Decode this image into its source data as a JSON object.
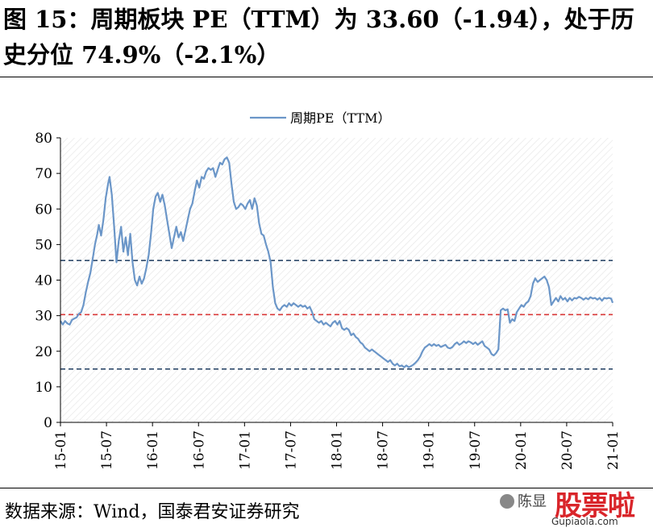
{
  "header": {
    "title": "图 15：周期板块 PE（TTM）为 33.60（-1.94），处于历史分位 74.9%（-2.1%）"
  },
  "footer": {
    "source": "数据来源：Wind，国泰君安证券研究"
  },
  "watermark": {
    "account": "陈显",
    "brand": "股票啦",
    "url": "Gupiaola.com"
  },
  "colors": {
    "series": "#6b96c8",
    "upper_line": "#2f4a6b",
    "mid_line": "#d93a3a",
    "lower_line": "#2f4a6b",
    "hatch": "#e3e3e3"
  },
  "chart_data": {
    "type": "line",
    "title": "",
    "legend": [
      "周期PE（TTM）"
    ],
    "legend_position": "top-center",
    "xlabel": "",
    "ylabel": "",
    "ylim": [
      0,
      80
    ],
    "yticks": [
      0,
      10,
      20,
      30,
      40,
      50,
      60,
      70,
      80
    ],
    "xlim": [
      0,
      72
    ],
    "x_tick_positions": [
      0,
      6,
      12,
      18,
      24,
      30,
      36,
      42,
      48,
      54,
      60,
      66,
      72
    ],
    "x_tick_labels": [
      "15-01",
      "15-07",
      "16-01",
      "16-07",
      "17-01",
      "17-07",
      "18-01",
      "18-07",
      "19-01",
      "19-07",
      "20-01",
      "20-07",
      "21-01"
    ],
    "reference_lines": [
      {
        "name": "upper",
        "value": 45.5,
        "style": "dashed"
      },
      {
        "name": "mid",
        "value": 30.3,
        "style": "dashed"
      },
      {
        "name": "lower",
        "value": 15.0,
        "style": "dashed"
      }
    ],
    "series": [
      {
        "name": "周期PE（TTM）",
        "points": [
          [
            0,
            28.5
          ],
          [
            0.3,
            27.5
          ],
          [
            0.6,
            28.5
          ],
          [
            0.9,
            27.8
          ],
          [
            1.2,
            27.5
          ],
          [
            1.5,
            28.8
          ],
          [
            1.8,
            29.2
          ],
          [
            2.1,
            29.5
          ],
          [
            2.4,
            30.5
          ],
          [
            2.7,
            31.0
          ],
          [
            3.0,
            33.0
          ],
          [
            3.3,
            36.5
          ],
          [
            3.6,
            39.5
          ],
          [
            3.9,
            42.0
          ],
          [
            4.2,
            46.0
          ],
          [
            4.5,
            50.0
          ],
          [
            4.8,
            53.0
          ],
          [
            5.0,
            55.5
          ],
          [
            5.3,
            52.5
          ],
          [
            5.6,
            57.0
          ],
          [
            5.9,
            63.0
          ],
          [
            6.2,
            67.0
          ],
          [
            6.4,
            69.0
          ],
          [
            6.7,
            64.0
          ],
          [
            7.0,
            55.0
          ],
          [
            7.3,
            45.0
          ],
          [
            7.6,
            51.0
          ],
          [
            7.9,
            55.0
          ],
          [
            8.2,
            48.0
          ],
          [
            8.5,
            52.0
          ],
          [
            8.8,
            47.0
          ],
          [
            9.1,
            53.0
          ],
          [
            9.4,
            45.0
          ],
          [
            9.7,
            40.0
          ],
          [
            10.0,
            38.5
          ],
          [
            10.3,
            41.0
          ],
          [
            10.6,
            39.0
          ],
          [
            10.9,
            40.5
          ],
          [
            11.2,
            43.5
          ],
          [
            11.5,
            47.0
          ],
          [
            11.8,
            53.0
          ],
          [
            12.1,
            60.0
          ],
          [
            12.4,
            63.5
          ],
          [
            12.7,
            64.5
          ],
          [
            13.0,
            62.0
          ],
          [
            13.3,
            64.0
          ],
          [
            13.6,
            61.0
          ],
          [
            13.9,
            57.0
          ],
          [
            14.2,
            53.0
          ],
          [
            14.5,
            49.0
          ],
          [
            14.8,
            52.0
          ],
          [
            15.1,
            55.0
          ],
          [
            15.4,
            52.0
          ],
          [
            15.7,
            53.5
          ],
          [
            16.0,
            51.0
          ],
          [
            16.3,
            54.0
          ],
          [
            16.6,
            57.0
          ],
          [
            16.9,
            60.0
          ],
          [
            17.2,
            61.5
          ],
          [
            17.5,
            65.0
          ],
          [
            17.8,
            68.0
          ],
          [
            18.1,
            66.0
          ],
          [
            18.4,
            69.0
          ],
          [
            18.7,
            68.5
          ],
          [
            19.0,
            70.5
          ],
          [
            19.3,
            71.5
          ],
          [
            19.6,
            71.0
          ],
          [
            19.9,
            71.5
          ],
          [
            20.2,
            69.0
          ],
          [
            20.5,
            71.0
          ],
          [
            20.8,
            73.0
          ],
          [
            21.1,
            72.5
          ],
          [
            21.4,
            74.0
          ],
          [
            21.7,
            74.5
          ],
          [
            22.0,
            73.0
          ],
          [
            22.3,
            67.0
          ],
          [
            22.6,
            62.0
          ],
          [
            22.9,
            60.0
          ],
          [
            23.2,
            60.5
          ],
          [
            23.5,
            61.5
          ],
          [
            23.8,
            61.0
          ],
          [
            24.1,
            60.0
          ],
          [
            24.4,
            61.5
          ],
          [
            24.7,
            62.5
          ],
          [
            25.0,
            60.0
          ],
          [
            25.3,
            63.0
          ],
          [
            25.6,
            61.0
          ],
          [
            25.9,
            56.0
          ],
          [
            26.2,
            53.0
          ],
          [
            26.5,
            52.5
          ],
          [
            26.8,
            50.0
          ],
          [
            27.1,
            48.0
          ],
          [
            27.4,
            45.0
          ],
          [
            27.7,
            38.0
          ],
          [
            28.0,
            33.5
          ],
          [
            28.3,
            32.0
          ],
          [
            28.6,
            31.5
          ],
          [
            28.9,
            32.5
          ],
          [
            29.2,
            33.0
          ],
          [
            29.5,
            32.5
          ],
          [
            29.8,
            33.5
          ],
          [
            30.1,
            32.8
          ],
          [
            30.4,
            33.5
          ],
          [
            30.7,
            33.0
          ],
          [
            31.0,
            32.5
          ],
          [
            31.3,
            33.0
          ],
          [
            31.6,
            32.5
          ],
          [
            31.9,
            32.8
          ],
          [
            32.2,
            32.0
          ],
          [
            32.5,
            32.5
          ],
          [
            32.8,
            31.0
          ],
          [
            33.1,
            29.0
          ],
          [
            33.4,
            28.5
          ],
          [
            33.7,
            28.0
          ],
          [
            34.0,
            28.5
          ],
          [
            34.3,
            27.5
          ],
          [
            34.6,
            28.0
          ],
          [
            34.9,
            27.5
          ],
          [
            35.2,
            27.0
          ],
          [
            35.5,
            28.0
          ],
          [
            35.8,
            28.5
          ],
          [
            36.1,
            27.5
          ],
          [
            36.4,
            28.5
          ],
          [
            36.7,
            26.5
          ],
          [
            37.0,
            26.0
          ],
          [
            37.3,
            26.5
          ],
          [
            37.6,
            26.0
          ],
          [
            37.9,
            24.5
          ],
          [
            38.2,
            25.0
          ],
          [
            38.5,
            24.0
          ],
          [
            38.8,
            23.5
          ],
          [
            39.1,
            22.5
          ],
          [
            39.4,
            22.0
          ],
          [
            39.7,
            21.0
          ],
          [
            40.0,
            20.5
          ],
          [
            40.3,
            20.0
          ],
          [
            40.6,
            20.5
          ],
          [
            40.9,
            20.0
          ],
          [
            41.2,
            19.5
          ],
          [
            41.5,
            19.0
          ],
          [
            41.8,
            18.5
          ],
          [
            42.1,
            18.0
          ],
          [
            42.4,
            17.5
          ],
          [
            42.7,
            17.0
          ],
          [
            43.0,
            17.5
          ],
          [
            43.3,
            16.5
          ],
          [
            43.6,
            16.0
          ],
          [
            43.9,
            16.5
          ],
          [
            44.2,
            15.8
          ],
          [
            44.5,
            16.0
          ],
          [
            44.8,
            15.5
          ],
          [
            45.1,
            16.0
          ],
          [
            45.4,
            15.5
          ],
          [
            45.7,
            15.8
          ],
          [
            46.0,
            16.2
          ],
          [
            46.3,
            16.8
          ],
          [
            46.6,
            17.5
          ],
          [
            46.9,
            18.5
          ],
          [
            47.2,
            20.0
          ],
          [
            47.5,
            21.0
          ],
          [
            47.8,
            21.5
          ],
          [
            48.1,
            22.0
          ],
          [
            48.4,
            21.5
          ],
          [
            48.7,
            22.0
          ],
          [
            49.0,
            21.5
          ],
          [
            49.3,
            21.8
          ],
          [
            49.6,
            21.2
          ],
          [
            49.9,
            21.5
          ],
          [
            50.2,
            21.8
          ],
          [
            50.5,
            21.0
          ],
          [
            50.8,
            20.8
          ],
          [
            51.1,
            21.2
          ],
          [
            51.4,
            22.0
          ],
          [
            51.7,
            22.5
          ],
          [
            52.0,
            21.8
          ],
          [
            52.3,
            22.2
          ],
          [
            52.6,
            22.8
          ],
          [
            52.9,
            22.3
          ],
          [
            53.2,
            22.8
          ],
          [
            53.5,
            22.5
          ],
          [
            53.8,
            22.0
          ],
          [
            54.1,
            22.5
          ],
          [
            54.4,
            21.8
          ],
          [
            54.7,
            22.3
          ],
          [
            55.0,
            22.8
          ],
          [
            55.3,
            21.5
          ],
          [
            55.6,
            21.0
          ],
          [
            55.9,
            20.5
          ],
          [
            56.2,
            19.2
          ],
          [
            56.5,
            18.8
          ],
          [
            56.8,
            19.5
          ],
          [
            57.1,
            20.5
          ],
          [
            57.4,
            31.5
          ],
          [
            57.7,
            32.0
          ],
          [
            58.0,
            31.5
          ],
          [
            58.3,
            31.8
          ],
          [
            58.6,
            28.0
          ],
          [
            58.9,
            29.0
          ],
          [
            59.2,
            28.5
          ],
          [
            59.5,
            31.0
          ],
          [
            59.8,
            32.0
          ],
          [
            60.1,
            33.0
          ],
          [
            60.4,
            32.5
          ],
          [
            60.7,
            33.5
          ],
          [
            61.0,
            34.0
          ],
          [
            61.3,
            35.5
          ],
          [
            61.6,
            39.0
          ],
          [
            61.9,
            40.5
          ],
          [
            62.2,
            39.5
          ],
          [
            62.5,
            40.0
          ],
          [
            62.8,
            40.5
          ],
          [
            63.1,
            41.0
          ],
          [
            63.4,
            40.0
          ],
          [
            63.7,
            38.0
          ],
          [
            64.0,
            33.0
          ],
          [
            64.3,
            34.0
          ],
          [
            64.6,
            35.0
          ],
          [
            64.9,
            34.0
          ],
          [
            65.2,
            35.5
          ],
          [
            65.5,
            34.5
          ],
          [
            65.8,
            35.0
          ],
          [
            66.1,
            34.0
          ],
          [
            66.4,
            35.0
          ],
          [
            66.7,
            34.3
          ],
          [
            67.0,
            35.0
          ],
          [
            67.3,
            34.8
          ],
          [
            67.6,
            35.3
          ],
          [
            67.9,
            35.0
          ],
          [
            68.2,
            34.5
          ],
          [
            68.5,
            35.0
          ],
          [
            68.8,
            34.6
          ],
          [
            69.1,
            35.2
          ],
          [
            69.4,
            34.8
          ],
          [
            69.7,
            35.0
          ],
          [
            70.0,
            34.5
          ],
          [
            70.3,
            35.0
          ],
          [
            70.6,
            34.2
          ],
          [
            70.9,
            35.0
          ],
          [
            71.2,
            34.8
          ],
          [
            71.5,
            35.0
          ],
          [
            71.8,
            34.8
          ],
          [
            72.0,
            33.6
          ]
        ]
      }
    ]
  }
}
